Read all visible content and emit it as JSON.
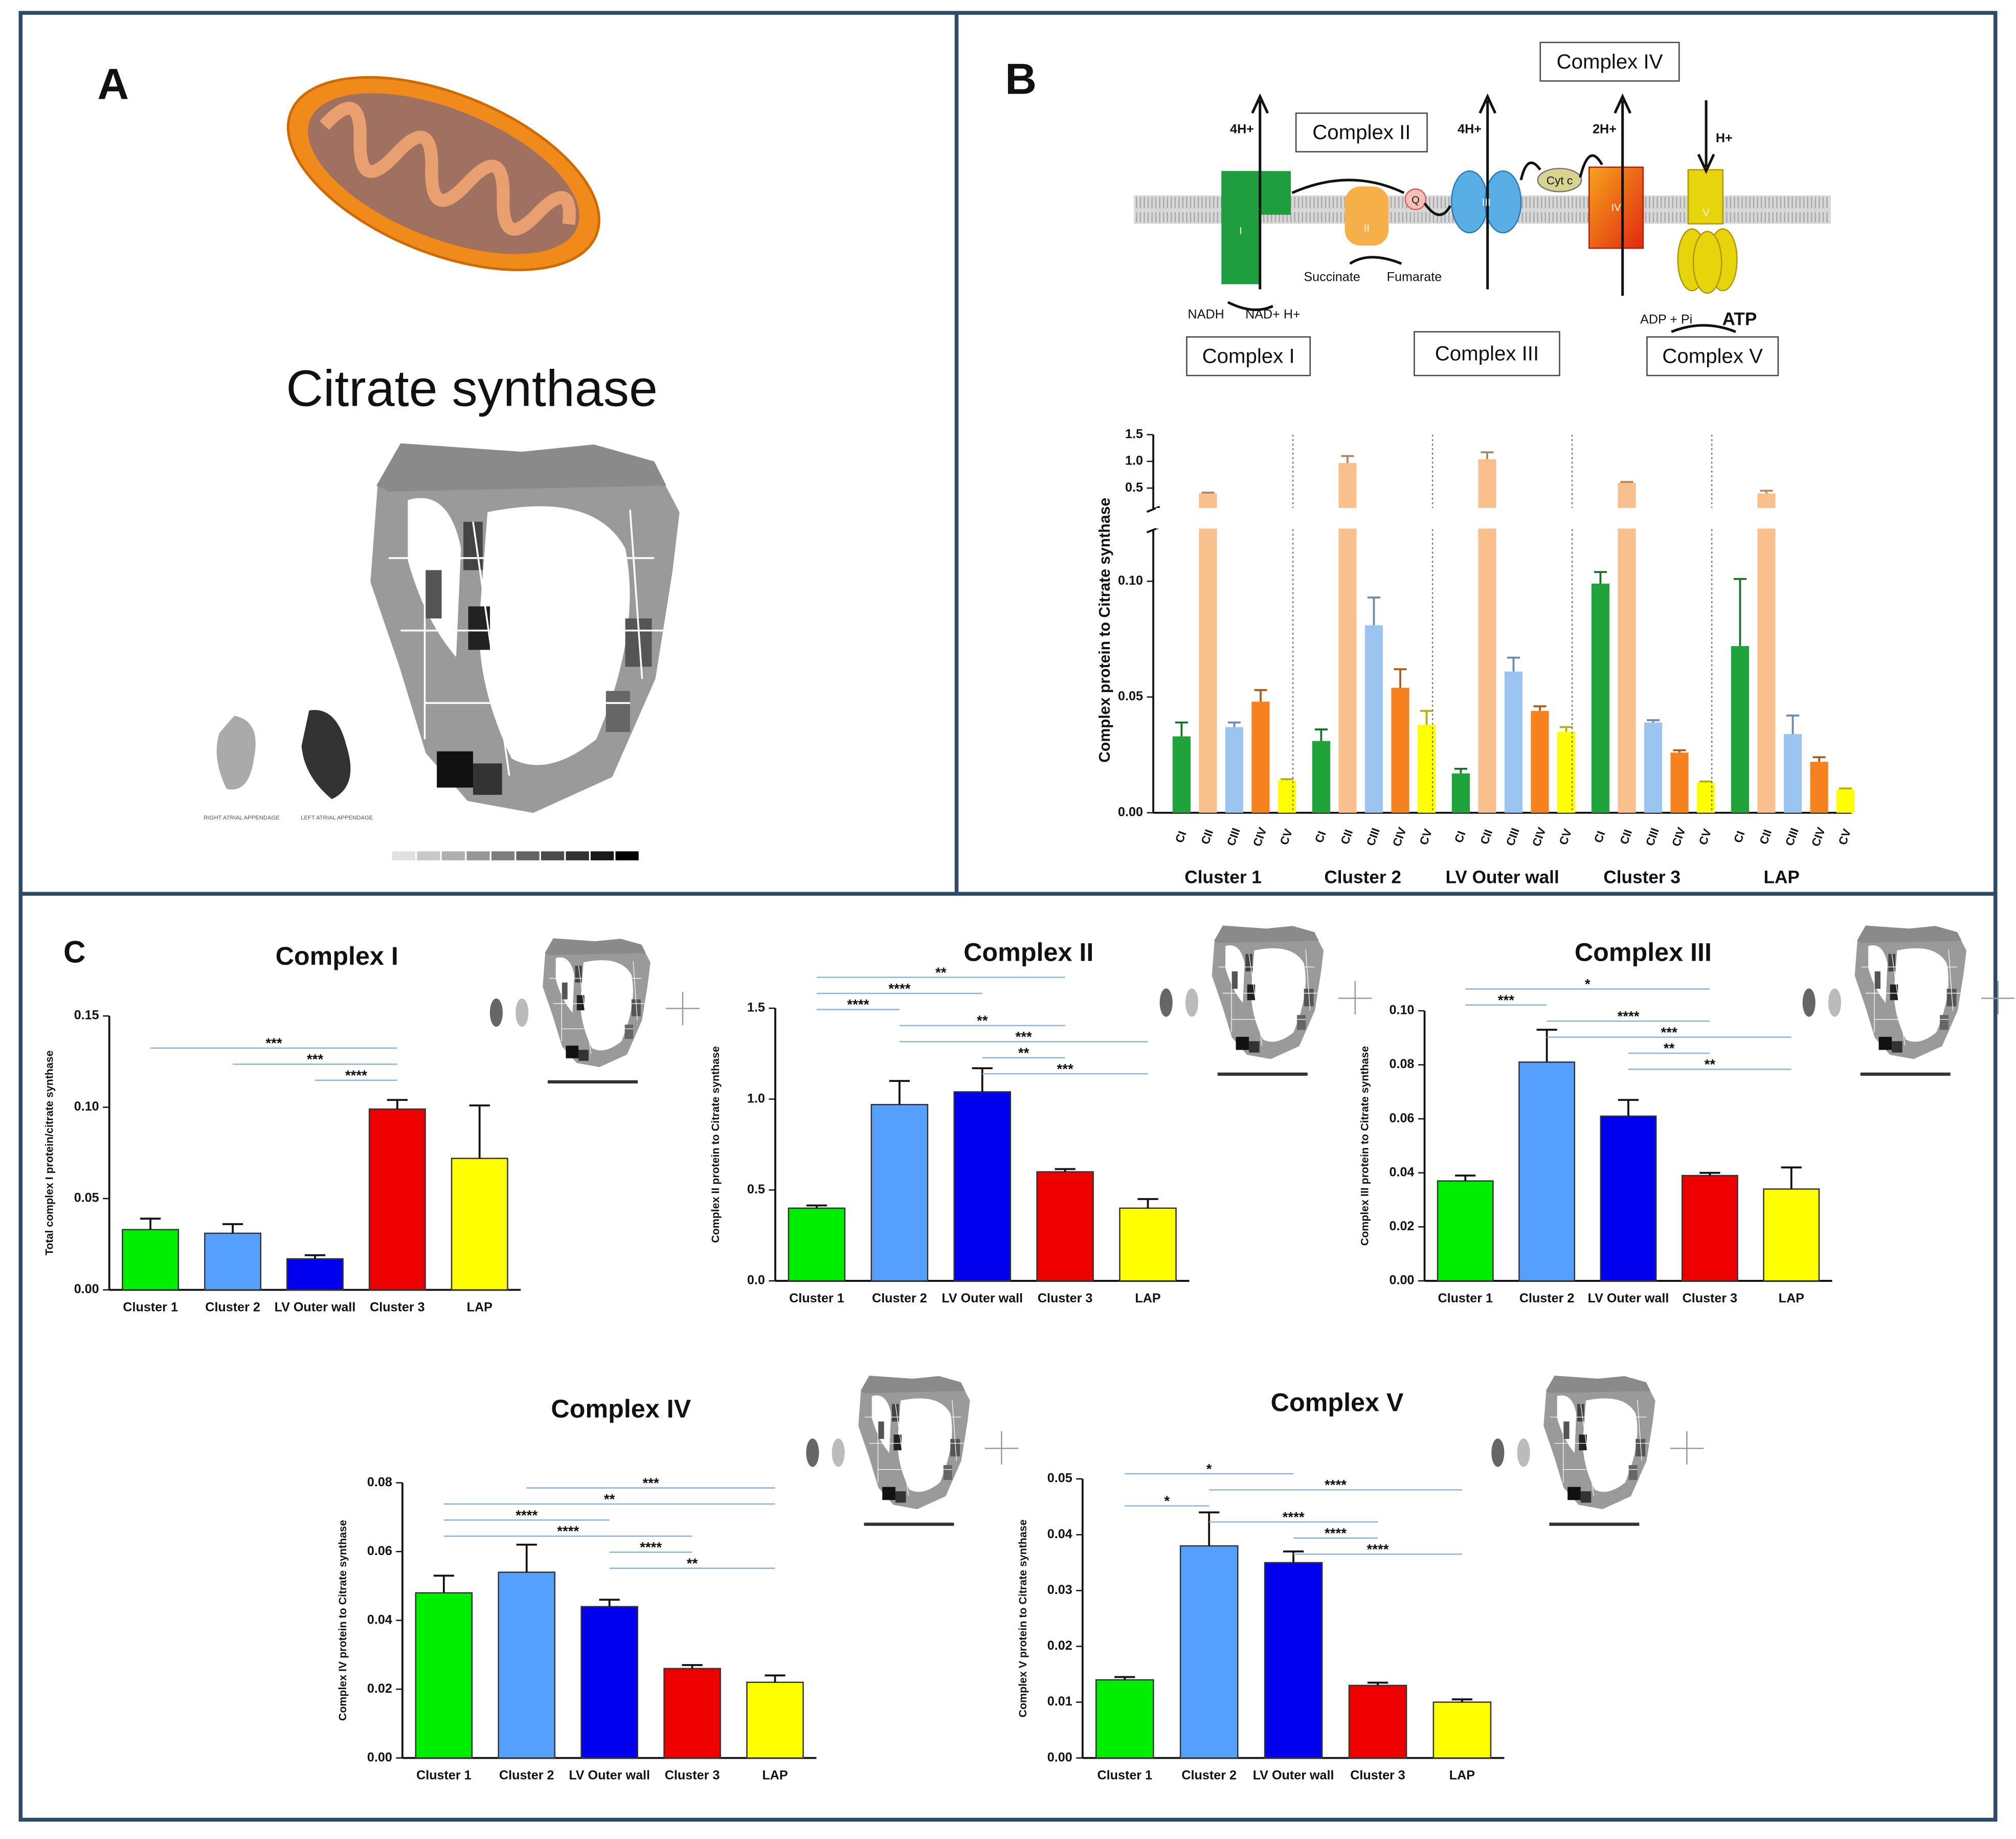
{
  "labels": {
    "panel_a": "A",
    "panel_b": "B",
    "panel_c": "C"
  },
  "diagram_a": {
    "title": "Citrate synthase",
    "right_appendage": "RIGHT ATRIAL APPENDAGE",
    "left_appendage": "LEFT ATRIAL APPENDAGE"
  },
  "diagram_b": {
    "boxes": [
      "Complex I",
      "Complex II",
      "Complex III",
      "Complex IV",
      "Complex V"
    ],
    "protons_1": "4H+",
    "protons_3": "4H+",
    "protons_4": "2H+",
    "protons_5": "H+",
    "q": "Q",
    "cyt_c": "Cyt c",
    "sub_1": "I",
    "sub_2": "II",
    "sub_3": "III",
    "sub_4": "IV",
    "sub_5": "V",
    "succinate": "Succinate",
    "fumarate": "Fumarate",
    "nadh": "NADH",
    "nad": "NAD+ H+",
    "adp": "ADP + Pi",
    "atp": "ATP"
  },
  "chart_data": [
    {
      "type": "grouped_bar",
      "broken_axis": true,
      "ylabel": "Complex protein to Citrate synthase",
      "categories": [
        "Cluster 1",
        "Cluster 2",
        "LV Outer wall",
        "Cluster 3",
        "LAP"
      ],
      "series": [
        {
          "name": "CI",
          "color": "#1fa33a",
          "values": [
            0.033,
            0.031,
            0.017,
            0.099,
            0.072
          ],
          "errors": [
            0.006,
            0.005,
            0.002,
            0.005,
            0.029
          ]
        },
        {
          "name": "CII",
          "color": "#f9c08e",
          "values": [
            0.4,
            0.97,
            1.04,
            0.6,
            0.4
          ],
          "errors": [
            0.015,
            0.13,
            0.13,
            0.015,
            0.05
          ]
        },
        {
          "name": "CIII",
          "color": "#9cc4f0",
          "values": [
            0.037,
            0.081,
            0.061,
            0.039,
            0.034
          ],
          "errors": [
            0.002,
            0.012,
            0.006,
            0.001,
            0.008
          ]
        },
        {
          "name": "CIV",
          "color": "#f5821f",
          "values": [
            0.048,
            0.054,
            0.044,
            0.026,
            0.022
          ],
          "errors": [
            0.005,
            0.008,
            0.002,
            0.001,
            0.002
          ]
        },
        {
          "name": "CV",
          "color": "#ffff00",
          "values": [
            0.014,
            0.038,
            0.035,
            0.013,
            0.01
          ],
          "errors": [
            0.0005,
            0.006,
            0.002,
            0.0005,
            0.0005
          ]
        }
      ],
      "ylim": [
        0,
        0.12
      ],
      "yticks": [
        {
          "value": 0,
          "label": "0.00"
        },
        0.05,
        {
          "value": 0.1,
          "label": "0.10"
        }
      ],
      "ylim_upper": [
        0.2,
        1.5
      ],
      "yticks_upper": [
        0.5,
        {
          "value": 1,
          "label": "1.0"
        },
        1.5
      ]
    },
    {
      "type": "bar",
      "title": "Complex I",
      "ylabel": "Total complex I protein/citrate synthase",
      "categories": [
        "Cluster 1",
        "Cluster 2",
        "LV Outer wall",
        "Cluster 3",
        "LAP"
      ],
      "colors": [
        "#00ee00",
        "#55a0ff",
        "#0000ee",
        "#ee0000",
        "#ffff00"
      ],
      "values": [
        0.033,
        0.031,
        0.017,
        0.099,
        0.072
      ],
      "errors": [
        0.006,
        0.005,
        0.002,
        0.005,
        0.029
      ],
      "ylim": [
        0,
        0.15
      ],
      "yticks": [
        {
          "value": 0,
          "label": "0.00"
        },
        0.05,
        {
          "value": 0.1,
          "label": "0.10"
        },
        0.15
      ],
      "comparisons": [
        {
          "label": "***",
          "from": 0,
          "to": 3
        },
        {
          "label": "***",
          "from": 1,
          "to": 3
        },
        {
          "label": "****",
          "from": 2,
          "to": 3
        }
      ]
    },
    {
      "type": "bar",
      "title": "Complex II",
      "ylabel": "Complex II protein to Citrate synthase",
      "categories": [
        "Cluster 1",
        "Cluster 2",
        "LV Outer wall",
        "Cluster 3",
        "LAP"
      ],
      "colors": [
        "#00ee00",
        "#55a0ff",
        "#0000ee",
        "#ee0000",
        "#ffff00"
      ],
      "values": [
        0.4,
        0.97,
        1.04,
        0.6,
        0.4
      ],
      "errors": [
        0.015,
        0.13,
        0.13,
        0.015,
        0.05
      ],
      "ylim": [
        0,
        1.5
      ],
      "yticks": [
        {
          "value": 0,
          "label": "0.0"
        },
        0.5,
        {
          "value": 1,
          "label": "1.0"
        },
        1.5
      ],
      "comparisons": [
        {
          "label": "**",
          "from": 0,
          "to": 3
        },
        {
          "label": "****",
          "from": 0,
          "to": 2
        },
        {
          "label": "****",
          "from": 0,
          "to": 1
        },
        {
          "label": "**",
          "from": 1,
          "to": 3
        },
        {
          "label": "***",
          "from": 1,
          "to": 4
        },
        {
          "label": "**",
          "from": 2,
          "to": 3
        },
        {
          "label": "***",
          "from": 2,
          "to": 4
        }
      ]
    },
    {
      "type": "bar",
      "title": "Complex III",
      "ylabel": "Complex III protein to Citrate synthase",
      "categories": [
        "Cluster 1",
        "Cluster 2",
        "LV Outer wall",
        "Cluster 3",
        "LAP"
      ],
      "colors": [
        "#00ee00",
        "#55a0ff",
        "#0000ee",
        "#ee0000",
        "#ffff00"
      ],
      "values": [
        0.037,
        0.081,
        0.061,
        0.039,
        0.034
      ],
      "errors": [
        0.002,
        0.012,
        0.006,
        0.001,
        0.008
      ],
      "ylim": [
        0,
        0.1
      ],
      "yticks": [
        {
          "value": 0,
          "label": "0.00"
        },
        0.02,
        0.04,
        0.06,
        0.08,
        {
          "value": 0.1,
          "label": "0.10"
        }
      ],
      "comparisons": [
        {
          "label": "*",
          "from": 0,
          "to": 3
        },
        {
          "label": "***",
          "from": 0,
          "to": 1
        },
        {
          "label": "****",
          "from": 1,
          "to": 3
        },
        {
          "label": "***",
          "from": 1,
          "to": 4
        },
        {
          "label": "**",
          "from": 2,
          "to": 3
        },
        {
          "label": "**",
          "from": 2,
          "to": 4
        }
      ]
    },
    {
      "type": "bar",
      "title": "Complex IV",
      "ylabel": "Complex IV protein to Citrate synthase",
      "categories": [
        "Cluster 1",
        "Cluster 2",
        "LV Outer wall",
        "Cluster 3",
        "LAP"
      ],
      "colors": [
        "#00ee00",
        "#55a0ff",
        "#0000ee",
        "#ee0000",
        "#ffff00"
      ],
      "values": [
        0.048,
        0.054,
        0.044,
        0.026,
        0.022
      ],
      "errors": [
        0.005,
        0.008,
        0.002,
        0.001,
        0.002
      ],
      "ylim": [
        0,
        0.08
      ],
      "yticks": [
        {
          "value": 0,
          "label": "0.00"
        },
        0.02,
        0.04,
        0.06,
        0.08
      ],
      "comparisons": [
        {
          "label": "***",
          "from": 1,
          "to": 4
        },
        {
          "label": "**",
          "from": 0,
          "to": 4
        },
        {
          "label": "****",
          "from": 0,
          "to": 2
        },
        {
          "label": "****",
          "from": 0,
          "to": 3
        },
        {
          "label": "****",
          "from": 2,
          "to": 3
        },
        {
          "label": "**",
          "from": 2,
          "to": 4
        }
      ]
    },
    {
      "type": "bar",
      "title": "Complex V",
      "ylabel": "Complex V protein to Citrate synthase",
      "categories": [
        "Cluster 1",
        "Cluster 2",
        "LV Outer wall",
        "Cluster 3",
        "LAP"
      ],
      "colors": [
        "#00ee00",
        "#55a0ff",
        "#0000ee",
        "#ee0000",
        "#ffff00"
      ],
      "values": [
        0.014,
        0.038,
        0.035,
        0.013,
        0.01
      ],
      "errors": [
        0.0005,
        0.006,
        0.002,
        0.0005,
        0.0005
      ],
      "ylim": [
        0,
        0.05
      ],
      "yticks": [
        {
          "value": 0,
          "label": "0.00"
        },
        0.01,
        0.02,
        0.03,
        0.04,
        0.05
      ],
      "comparisons": [
        {
          "label": "*",
          "from": 0,
          "to": 2
        },
        {
          "label": "****",
          "from": 1,
          "to": 4
        },
        {
          "label": "*",
          "from": 0,
          "to": 1
        },
        {
          "label": "****",
          "from": 1,
          "to": 3
        },
        {
          "label": "****",
          "from": 2,
          "to": 3
        },
        {
          "label": "****",
          "from": 2,
          "to": 4
        }
      ]
    }
  ]
}
